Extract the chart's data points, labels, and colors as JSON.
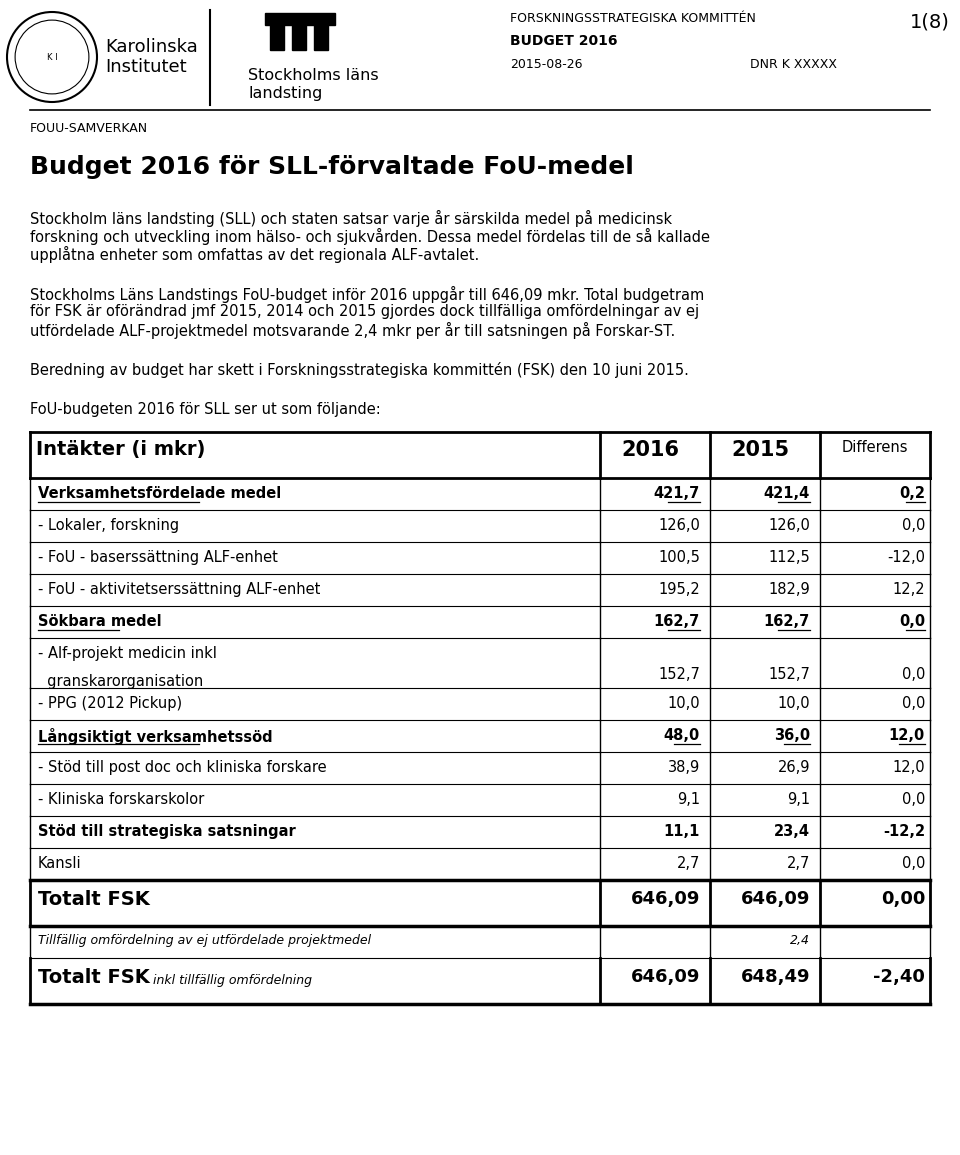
{
  "page_num": "1(8)",
  "header_right1": "FORSKNINGSSTRATEGISKA KOMMITTÉN",
  "header_right2": "BUDGET 2016",
  "header_right3": "2015-08-26",
  "header_right4": "DNR K XXXXX",
  "fouu": "FOUU-SAMVERKAN",
  "main_title": "Budget 2016 för SLL-förvaltade FoU-medel",
  "para1_lines": [
    "Stockholm läns landsting (SLL) och staten satsar varje år särskilda medel på medicinsk",
    "forskning och utveckling inom hälso- och sjukvården. Dessa medel fördelas till de så kallade",
    "upplåtna enheter som omfattas av det regionala ALF-avtalet."
  ],
  "para2_lines": [
    "Stockholms Läns Landstings FoU-budget inför 2016 uppgår till 646,09 mkr. Total budgetram",
    "för FSK är oförändrad jmf 2015, 2014 och 2015 gjordes dock tillfälliga omfördelningar av ej",
    "utfördelade ALF-projektmedel motsvarande 2,4 mkr per år till satsningen på Forskar-ST."
  ],
  "para3": "Beredning av budget har skett i Forskningsstrategiska kommittén (FSK) den 10 juni 2015.",
  "para4": "FoU-budgeten 2016 för SLL ser ut som följande:",
  "table_header": [
    "Intäkter (i mkr)",
    "2016",
    "2015",
    "Differens"
  ],
  "table_rows": [
    {
      "label": "Verksamhetsfördelade medel",
      "v2016": "421,7",
      "v2015": "421,4",
      "diff": "0,2",
      "bold": true,
      "underline": true
    },
    {
      "label": "- Lokaler, forskning",
      "v2016": "126,0",
      "v2015": "126,0",
      "diff": "0,0",
      "bold": false,
      "underline": false
    },
    {
      "label": "- FoU - baserssättning ALF-enhet",
      "v2016": "100,5",
      "v2015": "112,5",
      "diff": "-12,0",
      "bold": false,
      "underline": false
    },
    {
      "label": "- FoU - aktivitetserssättning ALF-enhet",
      "v2016": "195,2",
      "v2015": "182,9",
      "diff": "12,2",
      "bold": false,
      "underline": false
    },
    {
      "label": "Sökbara medel",
      "v2016": "162,7",
      "v2015": "162,7",
      "diff": "0,0",
      "bold": true,
      "underline": true
    },
    {
      "label": "- Alf-projekt medicin inkl",
      "v2016": "",
      "v2015": "",
      "diff": "",
      "bold": false,
      "underline": false,
      "extra_line": "  granskarorganisation",
      "extra_v2016": "152,7",
      "extra_v2015": "152,7",
      "extra_diff": "0,0"
    },
    {
      "label": "- PPG (2012 Pickup)",
      "v2016": "10,0",
      "v2015": "10,0",
      "diff": "0,0",
      "bold": false,
      "underline": false
    },
    {
      "label": "Långsiktigt verksamhetssöd",
      "v2016": "48,0",
      "v2015": "36,0",
      "diff": "12,0",
      "bold": true,
      "underline": true
    },
    {
      "label": "- Stöd till post doc och kliniska forskare",
      "v2016": "38,9",
      "v2015": "26,9",
      "diff": "12,0",
      "bold": false,
      "underline": false
    },
    {
      "label": "- Kliniska forskarskolor",
      "v2016": "9,1",
      "v2015": "9,1",
      "diff": "0,0",
      "bold": false,
      "underline": false
    },
    {
      "label": "Stöd till strategiska satsningar",
      "v2016": "11,1",
      "v2015": "23,4",
      "diff": "-12,2",
      "bold": true,
      "underline": false
    },
    {
      "label": "Kansli",
      "v2016": "2,7",
      "v2015": "2,7",
      "diff": "0,0",
      "bold": false,
      "underline": false
    }
  ],
  "total_row": {
    "label": "Totalt FSK",
    "v2016": "646,09",
    "v2015": "646,09",
    "diff": "0,00"
  },
  "tillfallig_label": "Tillfällig omfördelning av ej utfördelade projektmedel",
  "tillfallig_v2015": "2,4",
  "total2_label": "Totalt FSK",
  "total2_label2": "inkl tillfällig omfördelning",
  "total2_v2016": "646,09",
  "total2_v2015": "648,49",
  "total2_diff": "-2,40",
  "bg_color": "#ffffff"
}
